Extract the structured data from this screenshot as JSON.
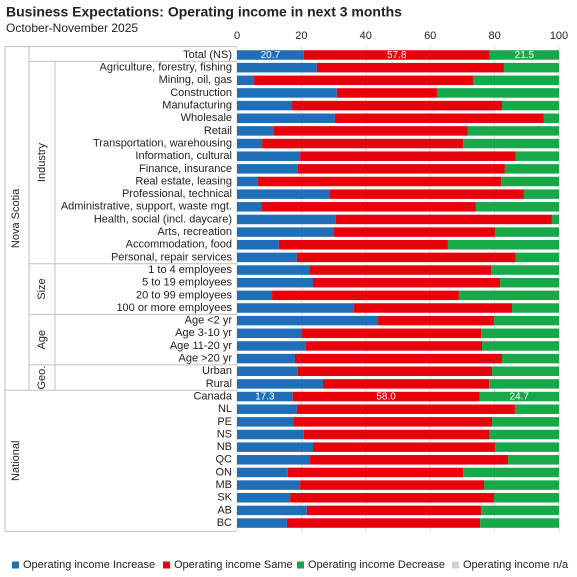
{
  "chart_data": {
    "type": "stacked-bar-horizontal",
    "title": "Business Expectations: Operating income in next 3 months",
    "subtitle": "October-November 2025",
    "categories": [
      "Total (NS)",
      "Agriculture, forestry, fishing",
      "Mining, oil, gas",
      "Construction",
      "Manufacturing",
      "Wholesale",
      "Retail",
      "Transportation, warehousing",
      "Information, cultural",
      "Finance, insurance",
      "Real estate, leasing",
      "Professional, technical",
      "Administrative, support, waste mgt.",
      "Health, social (incl. daycare)",
      "Arts, recreation",
      "Accommodation, food",
      "Personal, repair services",
      "1 to 4 employees",
      "5 to 19 employees",
      "20 to 99 employees",
      "100 or more employees",
      "Age <2 yr",
      "Age 3-10 yr",
      "Age 11-20 yr",
      "Age >20 yr",
      "Urban",
      "Rural",
      "Canada",
      "NL",
      "PE",
      "NS",
      "NB",
      "QC",
      "ON",
      "MB",
      "SK",
      "AB",
      "BC"
    ],
    "groups": [
      {
        "name": "Nova Scotia",
        "span": [
          0,
          26
        ],
        "subgroups": [
          {
            "name": "Industry",
            "span": [
              1,
              16
            ]
          },
          {
            "name": "Size",
            "span": [
              17,
              20
            ]
          },
          {
            "name": "Age",
            "span": [
              21,
              24
            ]
          },
          {
            "name": "Geo.",
            "span": [
              25,
              26
            ]
          }
        ]
      },
      {
        "name": "National",
        "span": [
          27,
          37
        ],
        "subgroups": []
      }
    ],
    "series": [
      {
        "name": "Operating income Increase",
        "color": "#1f6fb8",
        "values": [
          20.7,
          24.8,
          5.3,
          31.0,
          17.1,
          30.4,
          11.5,
          7.8,
          19.6,
          18.9,
          6.5,
          28.9,
          7.5,
          30.7,
          30.1,
          13.0,
          18.6,
          22.4,
          23.6,
          10.9,
          36.3,
          43.8,
          20.2,
          21.4,
          18.0,
          18.9,
          26.7,
          17.3,
          18.6,
          17.7,
          20.7,
          23.6,
          22.7,
          15.8,
          19.6,
          16.5,
          21.7,
          15.5
        ],
        "value_labels": [
          "20.7",
          null,
          null,
          null,
          null,
          null,
          null,
          null,
          null,
          null,
          null,
          null,
          null,
          null,
          null,
          null,
          null,
          null,
          null,
          null,
          null,
          null,
          null,
          null,
          null,
          null,
          null,
          "17.3",
          null,
          null,
          null,
          null,
          null,
          null,
          null,
          null,
          null,
          null
        ]
      },
      {
        "name": "Operating income Same",
        "color": "#e8000b",
        "values": [
          57.8,
          58.1,
          68.0,
          31.1,
          65.2,
          64.9,
          60.2,
          62.4,
          67.0,
          64.3,
          75.5,
          60.2,
          66.7,
          67.1,
          50.0,
          52.5,
          68.0,
          56.5,
          58.1,
          58.0,
          49.1,
          36.0,
          55.6,
          54.7,
          64.3,
          60.3,
          51.6,
          58.0,
          67.7,
          61.5,
          57.8,
          56.5,
          61.5,
          54.4,
          57.1,
          63.3,
          54.1,
          60.0
        ],
        "value_labels": [
          "57.8",
          null,
          null,
          null,
          null,
          null,
          null,
          null,
          null,
          null,
          null,
          null,
          null,
          null,
          null,
          null,
          null,
          null,
          null,
          null,
          null,
          null,
          null,
          null,
          null,
          null,
          null,
          "58.0",
          null,
          null,
          null,
          null,
          null,
          null,
          null,
          null,
          null,
          null
        ]
      },
      {
        "name": "Operating income Decrease",
        "color": "#17a84a",
        "values": [
          21.5,
          17.1,
          26.7,
          37.9,
          17.7,
          4.7,
          28.3,
          29.8,
          13.4,
          16.8,
          18.0,
          10.9,
          25.8,
          2.2,
          19.9,
          34.5,
          13.4,
          21.1,
          18.3,
          31.1,
          14.6,
          20.2,
          24.2,
          23.9,
          17.7,
          20.8,
          21.7,
          24.7,
          13.7,
          20.8,
          21.5,
          19.9,
          15.8,
          29.8,
          23.3,
          20.2,
          24.2,
          24.5
        ],
        "value_labels": [
          "21.5",
          null,
          null,
          null,
          null,
          null,
          null,
          null,
          null,
          null,
          null,
          null,
          null,
          null,
          null,
          null,
          null,
          null,
          null,
          null,
          null,
          null,
          null,
          null,
          null,
          null,
          null,
          "24.7",
          null,
          null,
          null,
          null,
          null,
          null,
          null,
          null,
          null,
          null
        ]
      },
      {
        "name": "Operating income n/a",
        "color": "#d0d0d0",
        "values": [
          0,
          0,
          0,
          0,
          0,
          0,
          0,
          0,
          0,
          0,
          0,
          0,
          0,
          0,
          0,
          0,
          0,
          0,
          0,
          0,
          0,
          0,
          0,
          0,
          0,
          0,
          0,
          0,
          0,
          0,
          0,
          0,
          0,
          0,
          0,
          0,
          0,
          0
        ]
      }
    ],
    "xlim": [
      0,
      100
    ],
    "xticks": [
      0,
      20,
      40,
      60,
      80,
      100
    ],
    "grid": true,
    "legend": "bottom"
  }
}
